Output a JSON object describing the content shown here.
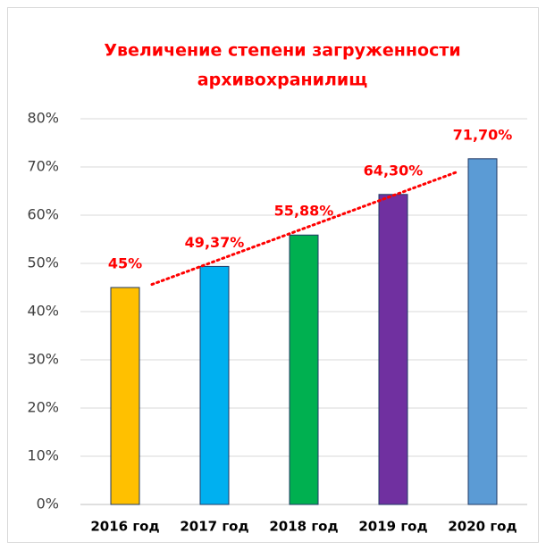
{
  "chart_data": {
    "type": "bar",
    "title": [
      "Увеличение степени загруженности",
      "архивохранилищ"
    ],
    "categories": [
      "2016 год",
      "2017 год",
      "2018 год",
      "2019 год",
      "2020 год"
    ],
    "values": [
      45,
      49.37,
      55.88,
      64.3,
      71.7
    ],
    "value_labels": [
      "45%",
      "49,37%",
      "55,88%",
      "64,30%",
      "71,70%"
    ],
    "colors": [
      "#ffc000",
      "#00b0f0",
      "#00b050",
      "#7030a0",
      "#5b9bd5"
    ],
    "ylim": [
      0,
      80
    ],
    "yticks": [
      {
        "value": 0,
        "label": "0%"
      },
      {
        "value": 10,
        "label": "10%"
      },
      {
        "value": 20,
        "label": "20%"
      },
      {
        "value": 30,
        "label": "30%"
      },
      {
        "value": 40,
        "label": "40%"
      },
      {
        "value": 50,
        "label": "50%"
      },
      {
        "value": 60,
        "label": "60%"
      },
      {
        "value": 70,
        "label": "70%"
      },
      {
        "value": 80,
        "label": "80%"
      }
    ],
    "grid": true,
    "trendline": {
      "type": "linear",
      "color": "#ff0000"
    }
  }
}
